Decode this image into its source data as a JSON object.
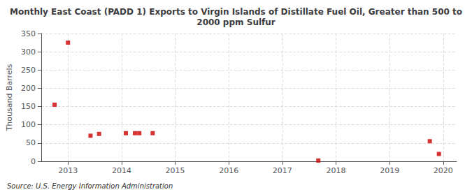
{
  "chart_data": {
    "type": "scatter",
    "title": "Monthly East Coast (PADD 1) Exports to Virgin Islands of Distillate Fuel Oil, Greater than 500 to\n2000 ppm Sulfur",
    "ylabel": "Thousand Barrels",
    "annotation": "Source: U.S. Energy Information Administration",
    "color": "#cc0000",
    "marker": "square",
    "grid": true,
    "xlim": [
      2012.5,
      2020.25
    ],
    "xticks": [
      2013,
      2014,
      2015,
      2016,
      2017,
      2018,
      2019,
      2020
    ],
    "ylim": [
      0,
      350
    ],
    "yticks": [
      0,
      50,
      100,
      150,
      200,
      250,
      300,
      350
    ],
    "x": [
      2012.75,
      2013.0,
      2013.42,
      2013.58,
      2014.08,
      2014.25,
      2014.33,
      2014.58,
      2017.67,
      2019.75,
      2019.92
    ],
    "values": [
      155,
      325,
      70,
      75,
      77,
      77,
      77,
      77,
      2,
      55,
      20
    ]
  }
}
